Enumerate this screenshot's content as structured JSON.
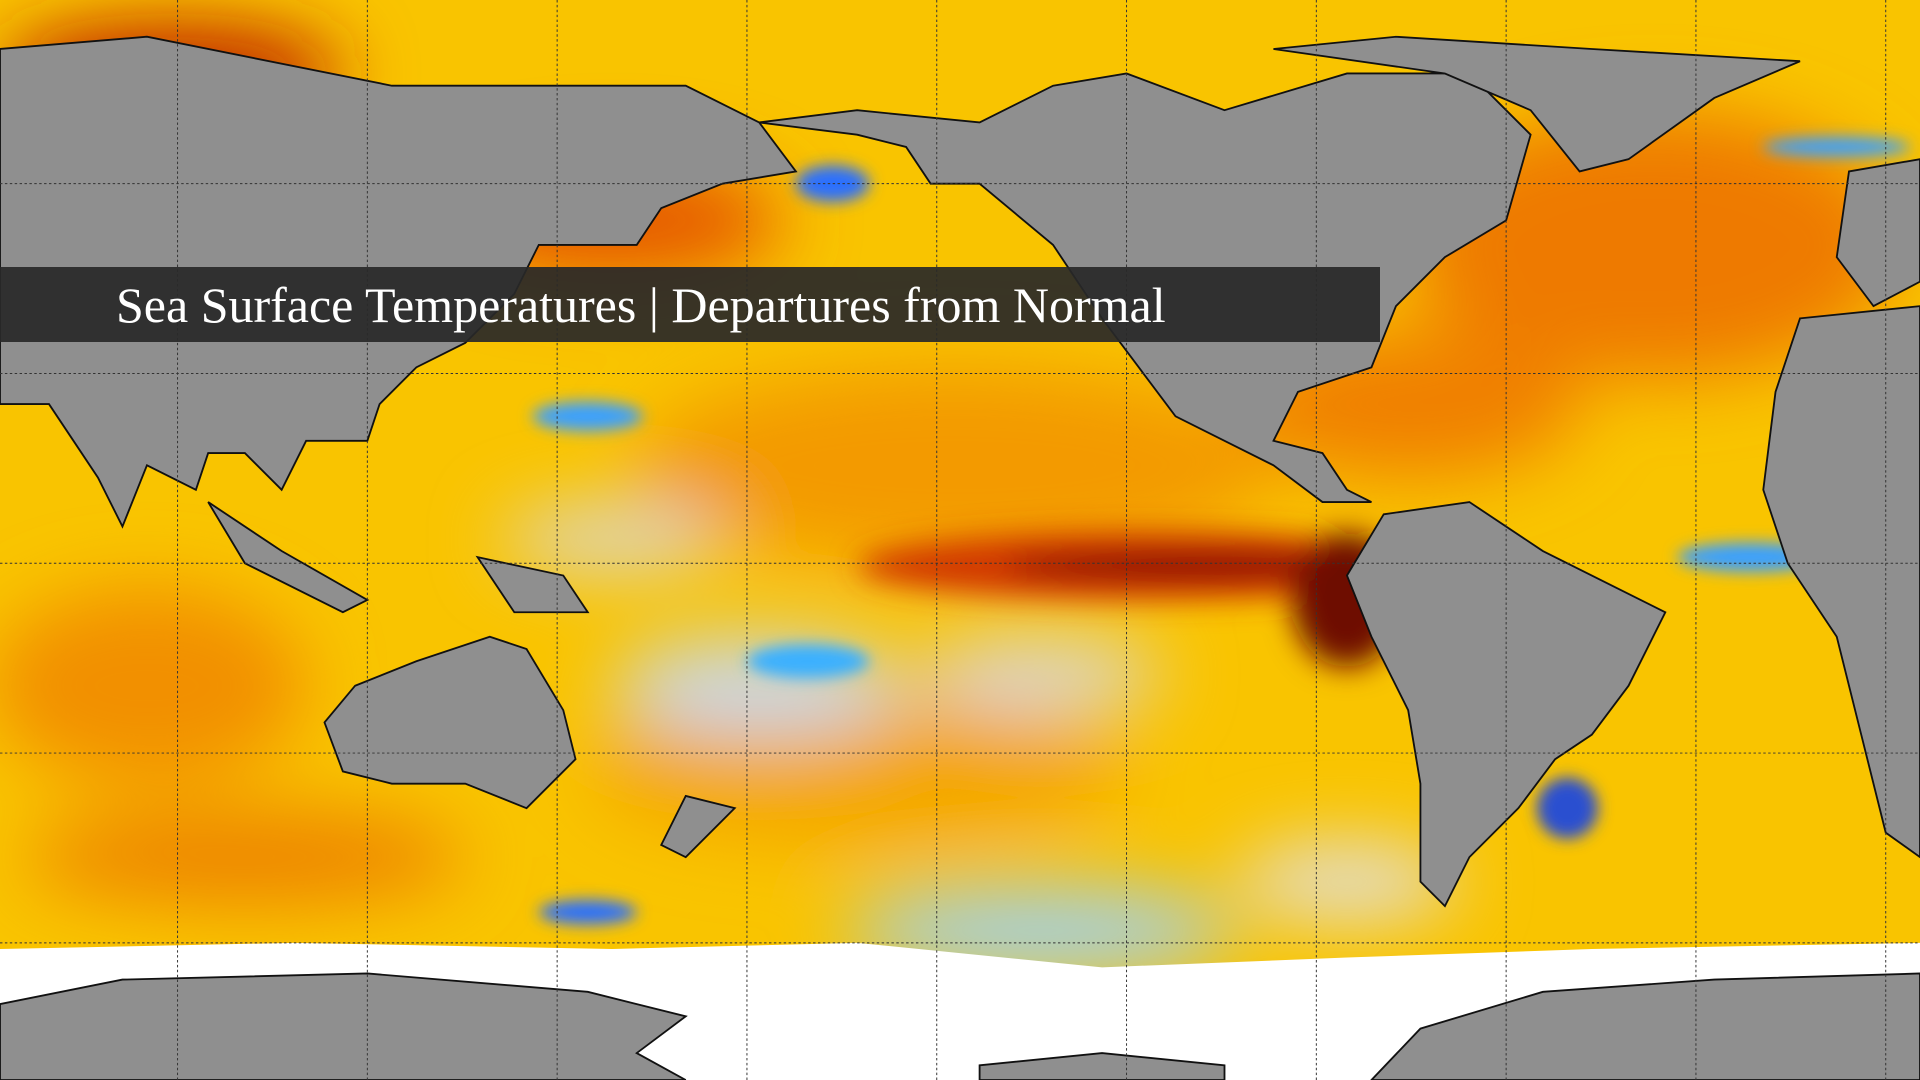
{
  "title": "Sea Surface Temperatures | Departures from Normal"
}
